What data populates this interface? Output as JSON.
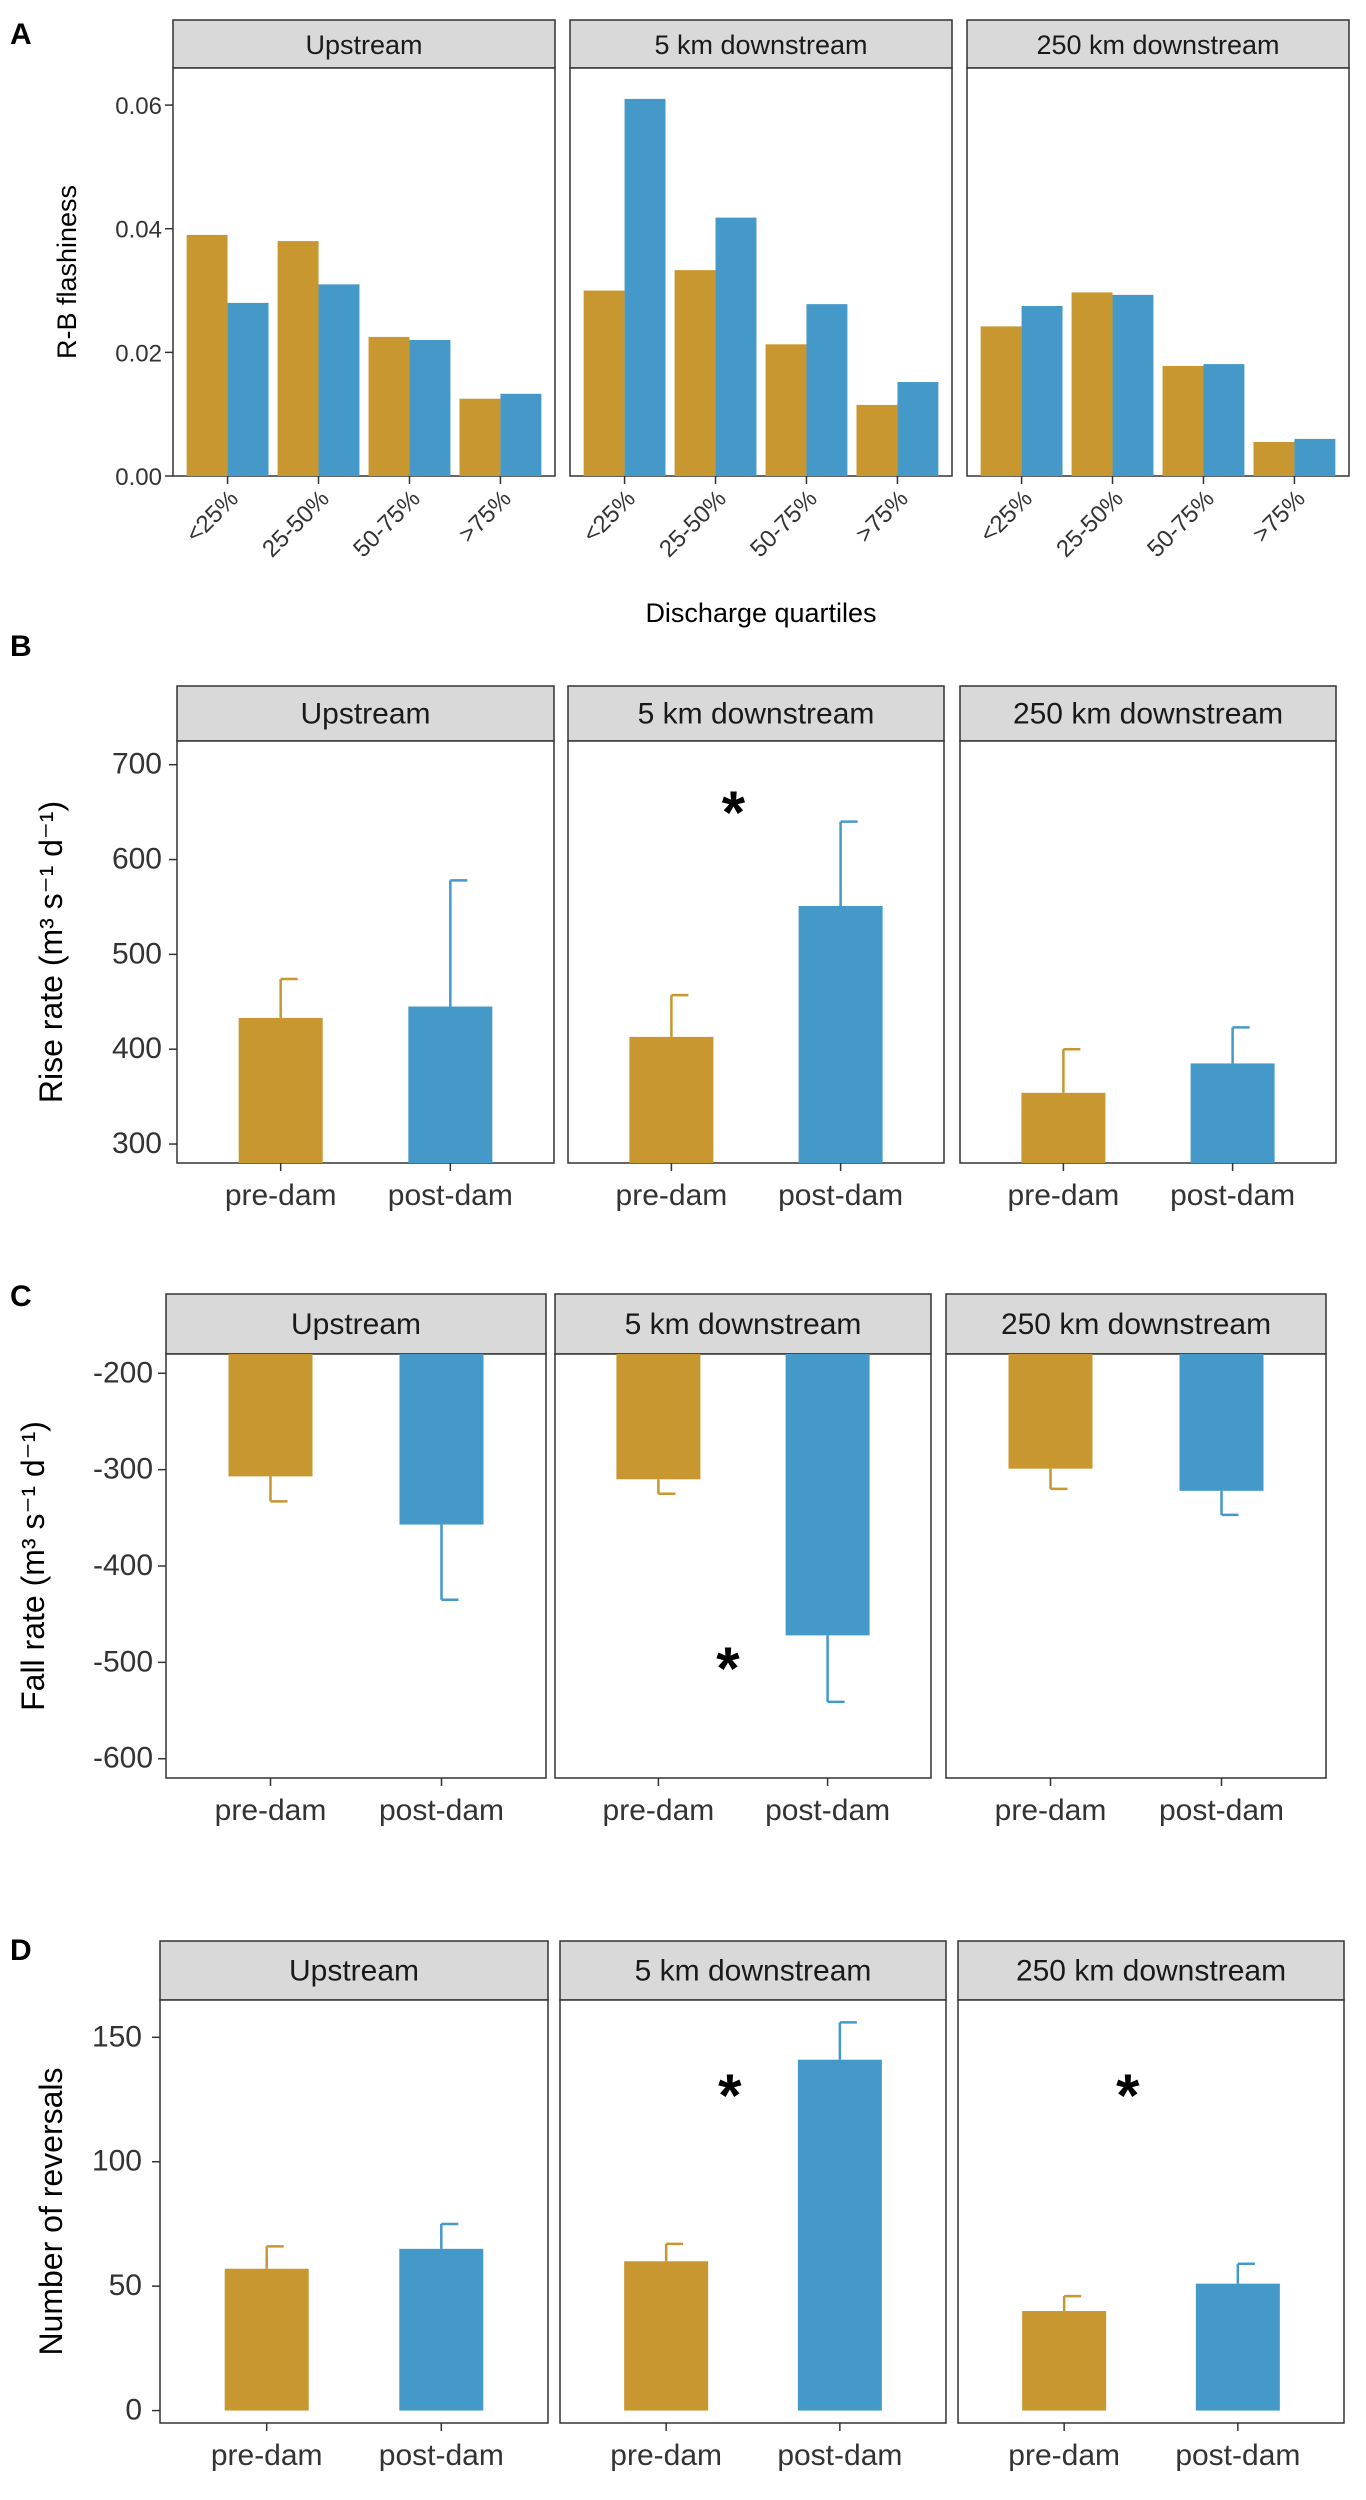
{
  "colors": {
    "pre": "#C9972F",
    "post": "#4499C9",
    "strip": "#D9D9D9",
    "frame": "#333333"
  },
  "chart_data": [
    {
      "panel_label": "A",
      "type": "bar",
      "ylabel": "R-B flashiness",
      "xlabel": "Discharge quartiles",
      "ylim": [
        0,
        0.066
      ],
      "yticks": [
        0,
        0.02,
        0.04,
        0.06
      ],
      "ytick_labels": [
        "0.00",
        "0.02",
        "0.04",
        "0.06"
      ],
      "categories": [
        "<25%",
        "25-50%",
        "50-75%",
        ">75%"
      ],
      "facets": [
        {
          "name": "Upstream",
          "pre": [
            0.039,
            0.038,
            0.0225,
            0.0125
          ],
          "post": [
            0.028,
            0.031,
            0.022,
            0.0133
          ]
        },
        {
          "name": "5 km downstream",
          "pre": [
            0.03,
            0.0333,
            0.0213,
            0.0115
          ],
          "post": [
            0.061,
            0.0418,
            0.0278,
            0.0152
          ]
        },
        {
          "name": "250 km downstream",
          "pre": [
            0.0242,
            0.0297,
            0.0178,
            0.0055
          ],
          "post": [
            0.0275,
            0.0293,
            0.0181,
            0.006
          ]
        }
      ]
    },
    {
      "panel_label": "B",
      "type": "bar",
      "ylabel": "Rise rate (m³ s⁻¹ d⁻¹)",
      "xlabel": "",
      "ylim": [
        280,
        725
      ],
      "yticks": [
        300,
        400,
        500,
        600,
        700
      ],
      "ytick_labels": [
        "300",
        "400",
        "500",
        "600",
        "700"
      ],
      "categories": [
        "pre-dam",
        "post-dam"
      ],
      "facets": [
        {
          "name": "Upstream",
          "values": [
            433,
            445
          ],
          "err_upper": [
            474,
            578
          ],
          "sig": ""
        },
        {
          "name": "5 km downstream",
          "values": [
            413,
            551
          ],
          "err_upper": [
            457,
            640
          ],
          "sig": "*"
        },
        {
          "name": "250 km downstream",
          "values": [
            354,
            385
          ],
          "err_upper": [
            400,
            423
          ],
          "sig": ""
        }
      ]
    },
    {
      "panel_label": "C",
      "type": "bar",
      "ylabel": "Fall rate (m³ s⁻¹ d⁻¹)",
      "xlabel": "",
      "ylim": [
        -620,
        -180
      ],
      "yticks": [
        -200,
        -300,
        -400,
        -500,
        -600
      ],
      "ytick_labels": [
        "-200",
        "-300",
        "-400",
        "-500",
        "-600"
      ],
      "categories": [
        "pre-dam",
        "post-dam"
      ],
      "facets": [
        {
          "name": "Upstream",
          "values": [
            -307,
            -357
          ],
          "err_lower": [
            -333,
            -435
          ],
          "sig": ""
        },
        {
          "name": "5 km downstream",
          "values": [
            -310,
            -472
          ],
          "err_lower": [
            -325,
            -541
          ],
          "sig": "*"
        },
        {
          "name": "250 km downstream",
          "values": [
            -299,
            -322
          ],
          "err_lower": [
            -320,
            -347
          ],
          "sig": ""
        }
      ]
    },
    {
      "panel_label": "D",
      "type": "bar",
      "ylabel": "Number of reversals",
      "xlabel": "",
      "ylim": [
        -5,
        165
      ],
      "yticks": [
        0,
        50,
        100,
        150
      ],
      "ytick_labels": [
        "0",
        "50",
        "100",
        "150"
      ],
      "categories": [
        "pre-dam",
        "post-dam"
      ],
      "facets": [
        {
          "name": "Upstream",
          "values": [
            57,
            65
          ],
          "err_upper": [
            66,
            75
          ],
          "sig": ""
        },
        {
          "name": "5 km downstream",
          "values": [
            60,
            141
          ],
          "err_upper": [
            67,
            156
          ],
          "sig": "*"
        },
        {
          "name": "250 km downstream",
          "values": [
            40,
            51
          ],
          "err_upper": [
            46,
            59
          ],
          "sig": "*"
        }
      ]
    }
  ]
}
